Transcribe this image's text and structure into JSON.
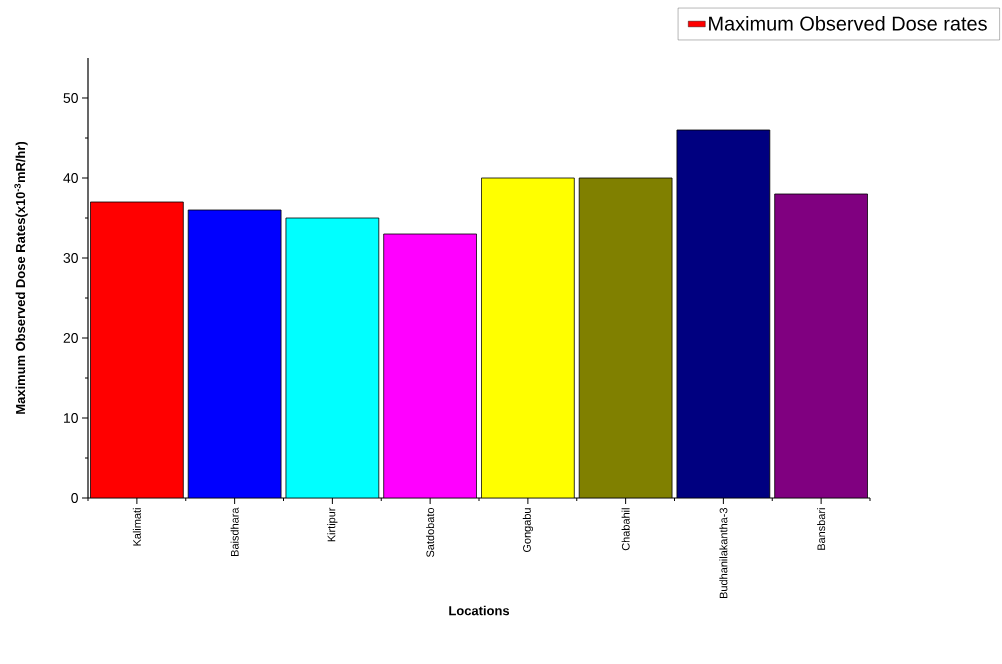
{
  "chart_data": {
    "type": "bar",
    "xlabel": "Locations",
    "ylabel": "Maximum Observed Dose Rates(x10$^{-3}$mR/hr)",
    "categories": [
      "Kalimati",
      "Baisdhara",
      "Kirtipur",
      "Satdobato",
      "Gongabu",
      "Chabahil",
      "Budhanilakantha-3",
      "Bansbari"
    ],
    "series": [
      {
        "name": "Maximum Observed Dose rates",
        "colors": [
          "#ff0000",
          "#0000ff",
          "#00ffff",
          "#ff00ff",
          "#ffff00",
          "#808000",
          "#000080",
          "#800080"
        ],
        "values": [
          37,
          36,
          35,
          33,
          40,
          40,
          46,
          38
        ]
      }
    ],
    "ylim": [
      0,
      55
    ],
    "yticks": [
      0,
      10,
      20,
      30,
      40,
      50
    ],
    "legend": "top right",
    "grid": false
  }
}
